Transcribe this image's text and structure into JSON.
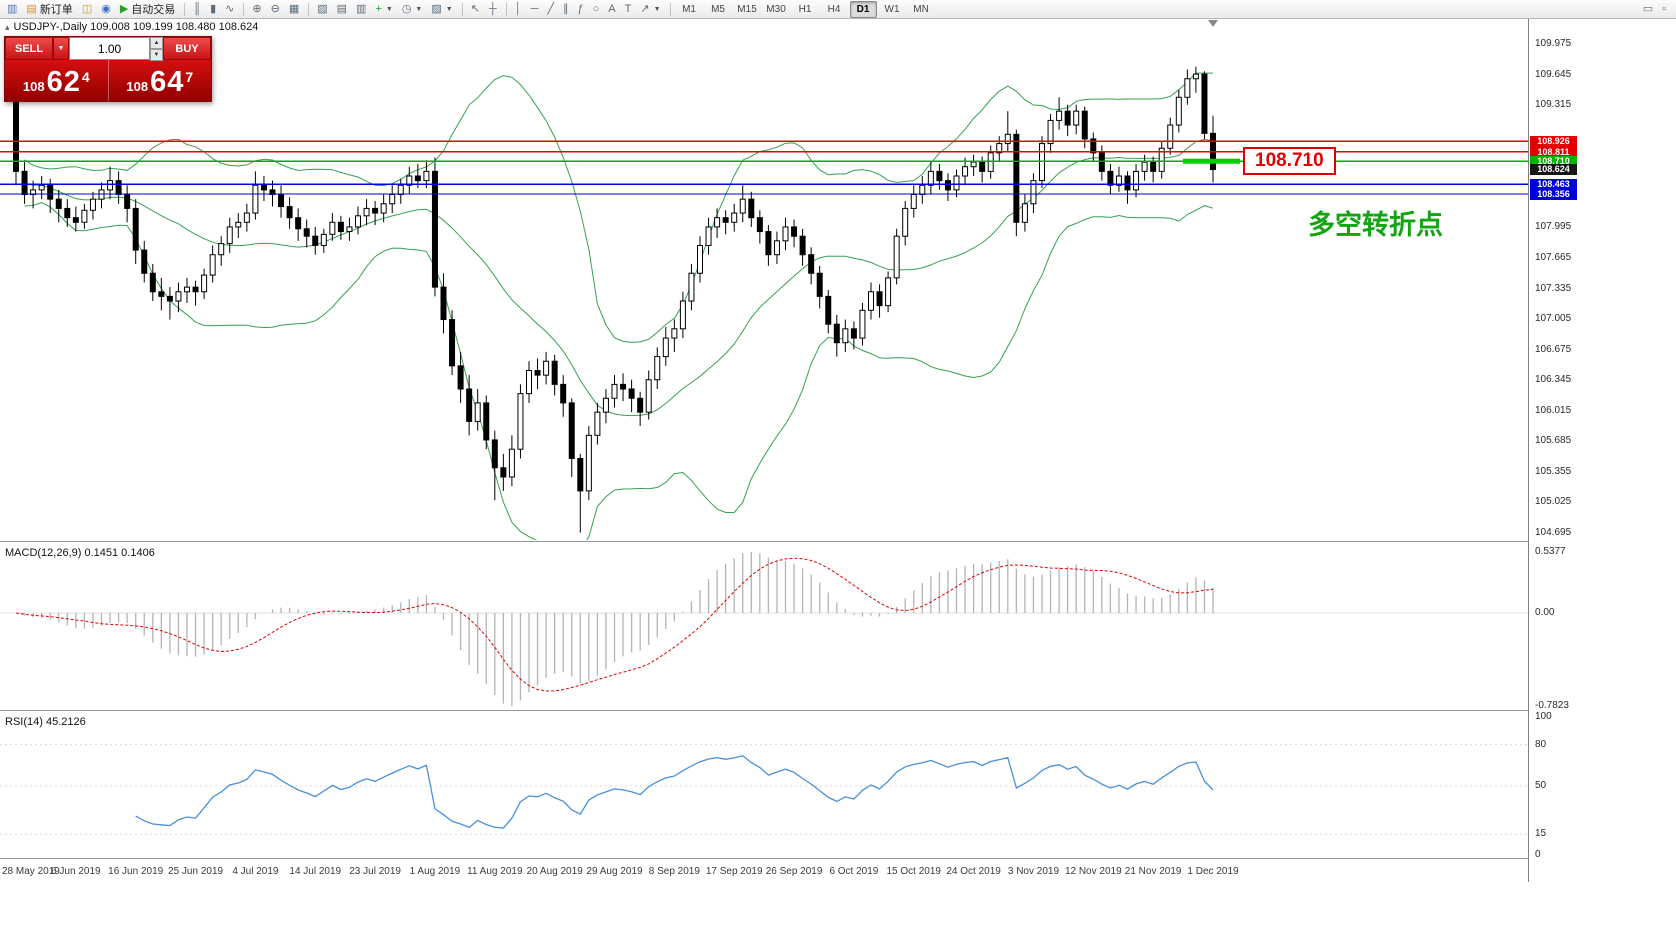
{
  "toolbar": {
    "items": [
      {
        "type": "btn",
        "name": "new-chart-button",
        "glyph": "▥",
        "color": "#4a7ab5"
      },
      {
        "type": "btn",
        "name": "new-order-button",
        "glyph": "▤",
        "color": "#d98f2a",
        "label": "新订单"
      },
      {
        "type": "btn",
        "name": "profiles-button",
        "glyph": "◫",
        "color": "#c9a227"
      },
      {
        "type": "btn",
        "name": "market-watch-button",
        "glyph": "◉",
        "color": "#3a6fbf"
      },
      {
        "type": "btn",
        "name": "autotrading-button",
        "glyph": "▶",
        "color": "#23a123",
        "label": "自动交易"
      },
      {
        "type": "sep"
      },
      {
        "type": "btn",
        "name": "bar-chart-button",
        "glyph": "║"
      },
      {
        "type": "btn",
        "name": "candlestick-chart-button",
        "glyph": "▮"
      },
      {
        "type": "btn",
        "name": "line-chart-button",
        "glyph": "∿"
      },
      {
        "type": "sep"
      },
      {
        "type": "btn",
        "name": "zoom-in-button",
        "glyph": "⊕"
      },
      {
        "type": "btn",
        "name": "zoom-out-button",
        "glyph": "⊖"
      },
      {
        "type": "btn",
        "name": "tile-windows-button",
        "glyph": "▦"
      },
      {
        "type": "sep"
      },
      {
        "type": "btn",
        "name": "cascade-windows-button",
        "glyph": "▧"
      },
      {
        "type": "btn",
        "name": "tile-horizontal-button",
        "glyph": "▤"
      },
      {
        "type": "btn",
        "name": "tile-vertical-button",
        "glyph": "▥"
      },
      {
        "type": "btn",
        "name": "indicators-button",
        "glyph": "+",
        "color": "#1f9e1f",
        "dropdown": true
      },
      {
        "type": "btn",
        "name": "periods-button",
        "glyph": "◷",
        "dropdown": true
      },
      {
        "type": "btn",
        "name": "templates-button",
        "glyph": "▨",
        "dropdown": true
      },
      {
        "type": "sep"
      },
      {
        "type": "btn",
        "name": "cursor-button",
        "glyph": "↖"
      },
      {
        "type": "btn",
        "name": "crosshair-button",
        "glyph": "┼"
      },
      {
        "type": "sep"
      },
      {
        "type": "btn",
        "name": "vertical-line-button",
        "glyph": "│"
      },
      {
        "type": "btn",
        "name": "horizontal-line-button",
        "glyph": "─"
      },
      {
        "type": "btn",
        "name": "trendline-button",
        "glyph": "╱"
      },
      {
        "type": "btn",
        "name": "channel-button",
        "glyph": "∥"
      },
      {
        "type": "btn",
        "name": "fibonacci-button",
        "glyph": "ƒ"
      },
      {
        "type": "btn",
        "name": "shapes-button",
        "glyph": "○"
      },
      {
        "type": "btn",
        "name": "text-button",
        "glyph": "A"
      },
      {
        "type": "btn",
        "name": "text-label-button",
        "glyph": "T"
      },
      {
        "type": "btn",
        "name": "arrows-button",
        "glyph": "↗",
        "dropdown": true
      },
      {
        "type": "sep"
      }
    ],
    "timeframes": [
      {
        "label": "M1"
      },
      {
        "label": "M5"
      },
      {
        "label": "M15"
      },
      {
        "label": "M30"
      },
      {
        "label": "H1"
      },
      {
        "label": "H4"
      },
      {
        "label": "D1",
        "active": true
      },
      {
        "label": "W1"
      },
      {
        "label": "MN"
      }
    ],
    "right_items": [
      {
        "name": "chart-window-button",
        "glyph": "▭"
      },
      {
        "name": "docking-button",
        "glyph": "▫"
      }
    ]
  },
  "trade_panel": {
    "sell_label": "SELL",
    "buy_label": "BUY",
    "volume": "1.00",
    "sell_price_major": "108",
    "sell_price_big": "62",
    "sell_price_sup": "4",
    "buy_price_major": "108",
    "buy_price_big": "64",
    "buy_price_sup": "7"
  },
  "chart_data": {
    "type": "candlestick",
    "symbol": "USDJPY",
    "timeframe": "Daily",
    "title": "USDJPY-,Daily  109.008 109.199 108.480 108.624",
    "ohlc_current": {
      "open": 109.008,
      "high": 109.199,
      "low": 108.48,
      "close": 108.624
    },
    "x_labels": [
      "28 May 2019",
      "6 Jun 2019",
      "16 Jun 2019",
      "25 Jun 2019",
      "4 Jul 2019",
      "14 Jul 2019",
      "23 Jul 2019",
      "1 Aug 2019",
      "11 Aug 2019",
      "20 Aug 2019",
      "29 Aug 2019",
      "8 Sep 2019",
      "17 Sep 2019",
      "26 Sep 2019",
      "6 Oct 2019",
      "15 Oct 2019",
      "24 Oct 2019",
      "3 Nov 2019",
      "12 Nov 2019",
      "21 Nov 2019",
      "1 Dec 2019"
    ],
    "x_label_indices": [
      0,
      7,
      14,
      21,
      28,
      35,
      42,
      49,
      56,
      63,
      70,
      77,
      84,
      91,
      98,
      105,
      112,
      119,
      126,
      133,
      140
    ],
    "candles": [
      [
        109.35,
        109.45,
        108.45,
        108.6
      ],
      [
        108.6,
        108.7,
        108.25,
        108.35
      ],
      [
        108.35,
        108.5,
        108.2,
        108.4
      ],
      [
        108.4,
        108.55,
        108.3,
        108.45
      ],
      [
        108.45,
        108.52,
        108.15,
        108.3
      ],
      [
        108.3,
        108.4,
        108.05,
        108.2
      ],
      [
        108.2,
        108.3,
        108.0,
        108.1
      ],
      [
        108.1,
        108.22,
        107.95,
        108.05
      ],
      [
        108.05,
        108.25,
        107.98,
        108.18
      ],
      [
        108.18,
        108.38,
        108.08,
        108.3
      ],
      [
        108.3,
        108.48,
        108.2,
        108.4
      ],
      [
        108.4,
        108.65,
        108.3,
        108.5
      ],
      [
        108.5,
        108.6,
        108.25,
        108.35
      ],
      [
        108.35,
        108.45,
        108.05,
        108.2
      ],
      [
        108.2,
        108.3,
        107.6,
        107.75
      ],
      [
        107.75,
        107.85,
        107.4,
        107.5
      ],
      [
        107.5,
        107.6,
        107.2,
        107.3
      ],
      [
        107.3,
        107.45,
        107.1,
        107.25
      ],
      [
        107.25,
        107.35,
        107.0,
        107.2
      ],
      [
        107.2,
        107.4,
        107.08,
        107.3
      ],
      [
        107.3,
        107.45,
        107.18,
        107.35
      ],
      [
        107.35,
        107.42,
        107.15,
        107.3
      ],
      [
        107.3,
        107.55,
        107.22,
        107.48
      ],
      [
        107.48,
        107.8,
        107.4,
        107.7
      ],
      [
        107.7,
        107.9,
        107.58,
        107.82
      ],
      [
        107.82,
        108.1,
        107.72,
        108.0
      ],
      [
        108.0,
        108.15,
        107.88,
        108.05
      ],
      [
        108.05,
        108.25,
        107.95,
        108.15
      ],
      [
        108.15,
        108.6,
        108.08,
        108.45
      ],
      [
        108.45,
        108.55,
        108.28,
        108.4
      ],
      [
        108.4,
        108.5,
        108.22,
        108.35
      ],
      [
        108.35,
        108.45,
        108.1,
        108.22
      ],
      [
        108.22,
        108.32,
        107.98,
        108.1
      ],
      [
        108.1,
        108.2,
        107.85,
        107.98
      ],
      [
        107.98,
        108.08,
        107.78,
        107.9
      ],
      [
        107.9,
        108.0,
        107.7,
        107.8
      ],
      [
        107.8,
        107.98,
        107.72,
        107.92
      ],
      [
        107.92,
        108.15,
        107.85,
        108.05
      ],
      [
        108.05,
        108.12,
        107.86,
        107.95
      ],
      [
        107.95,
        108.1,
        107.85,
        108.0
      ],
      [
        108.0,
        108.22,
        107.92,
        108.12
      ],
      [
        108.12,
        108.3,
        108.02,
        108.2
      ],
      [
        108.2,
        108.28,
        108.02,
        108.15
      ],
      [
        108.15,
        108.35,
        108.05,
        108.25
      ],
      [
        108.25,
        108.45,
        108.15,
        108.35
      ],
      [
        108.35,
        108.52,
        108.25,
        108.45
      ],
      [
        108.45,
        108.65,
        108.35,
        108.55
      ],
      [
        108.55,
        108.68,
        108.42,
        108.5
      ],
      [
        108.5,
        108.72,
        108.42,
        108.6
      ],
      [
        108.6,
        108.75,
        107.25,
        107.35
      ],
      [
        107.35,
        107.5,
        106.85,
        107.0
      ],
      [
        107.0,
        107.1,
        106.4,
        106.5
      ],
      [
        106.5,
        106.65,
        106.1,
        106.25
      ],
      [
        106.25,
        106.4,
        105.75,
        105.9
      ],
      [
        105.9,
        106.25,
        105.8,
        106.1
      ],
      [
        106.1,
        106.18,
        105.6,
        105.7
      ],
      [
        105.7,
        105.8,
        105.05,
        105.4
      ],
      [
        105.4,
        105.55,
        105.15,
        105.3
      ],
      [
        105.3,
        105.75,
        105.2,
        105.6
      ],
      [
        105.6,
        106.3,
        105.5,
        106.2
      ],
      [
        106.2,
        106.55,
        106.1,
        106.45
      ],
      [
        106.45,
        106.58,
        106.25,
        106.4
      ],
      [
        106.4,
        106.65,
        106.3,
        106.55
      ],
      [
        106.55,
        106.62,
        106.18,
        106.3
      ],
      [
        106.3,
        106.4,
        105.95,
        106.1
      ],
      [
        106.1,
        106.15,
        105.3,
        105.5
      ],
      [
        105.5,
        105.55,
        104.7,
        105.15
      ],
      [
        105.15,
        105.85,
        105.05,
        105.75
      ],
      [
        105.75,
        106.1,
        105.65,
        106.0
      ],
      [
        106.0,
        106.25,
        105.88,
        106.15
      ],
      [
        106.15,
        106.4,
        106.05,
        106.3
      ],
      [
        106.3,
        106.42,
        106.12,
        106.25
      ],
      [
        106.25,
        106.35,
        106.0,
        106.15
      ],
      [
        106.15,
        106.22,
        105.85,
        106.0
      ],
      [
        106.0,
        106.45,
        105.92,
        106.35
      ],
      [
        106.35,
        106.7,
        106.25,
        106.6
      ],
      [
        106.6,
        106.92,
        106.5,
        106.8
      ],
      [
        106.8,
        107.0,
        106.65,
        106.9
      ],
      [
        106.9,
        107.3,
        106.8,
        107.2
      ],
      [
        107.2,
        107.6,
        107.1,
        107.5
      ],
      [
        107.5,
        107.9,
        107.4,
        107.8
      ],
      [
        107.8,
        108.1,
        107.7,
        108.0
      ],
      [
        108.0,
        108.2,
        107.88,
        108.1
      ],
      [
        108.1,
        108.18,
        107.92,
        108.05
      ],
      [
        108.05,
        108.25,
        107.95,
        108.15
      ],
      [
        108.15,
        108.45,
        108.05,
        108.3
      ],
      [
        108.3,
        108.38,
        108.0,
        108.1
      ],
      [
        108.1,
        108.18,
        107.82,
        107.95
      ],
      [
        107.95,
        108.02,
        107.58,
        107.7
      ],
      [
        107.7,
        107.95,
        107.6,
        107.85
      ],
      [
        107.85,
        108.1,
        107.75,
        108.0
      ],
      [
        108.0,
        108.08,
        107.78,
        107.9
      ],
      [
        107.9,
        107.98,
        107.58,
        107.7
      ],
      [
        107.7,
        107.78,
        107.38,
        107.5
      ],
      [
        107.5,
        107.58,
        107.12,
        107.25
      ],
      [
        107.25,
        107.32,
        106.85,
        106.95
      ],
      [
        106.95,
        107.05,
        106.6,
        106.75
      ],
      [
        106.75,
        107.0,
        106.65,
        106.9
      ],
      [
        106.9,
        106.98,
        106.68,
        106.8
      ],
      [
        106.8,
        107.18,
        106.72,
        107.1
      ],
      [
        107.1,
        107.4,
        107.0,
        107.3
      ],
      [
        107.3,
        107.38,
        107.02,
        107.15
      ],
      [
        107.15,
        107.52,
        107.08,
        107.45
      ],
      [
        107.45,
        107.98,
        107.38,
        107.9
      ],
      [
        107.9,
        108.28,
        107.8,
        108.2
      ],
      [
        108.2,
        108.45,
        108.1,
        108.35
      ],
      [
        108.35,
        108.55,
        108.25,
        108.45
      ],
      [
        108.45,
        108.7,
        108.35,
        108.6
      ],
      [
        108.6,
        108.68,
        108.4,
        108.5
      ],
      [
        108.5,
        108.58,
        108.28,
        108.4
      ],
      [
        108.4,
        108.62,
        108.32,
        108.55
      ],
      [
        108.55,
        108.75,
        108.45,
        108.65
      ],
      [
        108.65,
        108.78,
        108.55,
        108.7
      ],
      [
        108.7,
        108.76,
        108.48,
        108.6
      ],
      [
        108.6,
        108.88,
        108.52,
        108.8
      ],
      [
        108.8,
        108.98,
        108.7,
        108.9
      ],
      [
        108.9,
        109.25,
        108.82,
        109.0
      ],
      [
        109.0,
        109.05,
        107.9,
        108.05
      ],
      [
        108.05,
        108.35,
        107.95,
        108.25
      ],
      [
        108.25,
        108.58,
        108.15,
        108.5
      ],
      [
        108.5,
        108.98,
        108.42,
        108.9
      ],
      [
        108.9,
        109.22,
        108.8,
        109.15
      ],
      [
        109.15,
        109.4,
        109.05,
        109.25
      ],
      [
        109.25,
        109.32,
        108.98,
        109.1
      ],
      [
        109.1,
        109.32,
        109.0,
        109.25
      ],
      [
        109.25,
        109.3,
        108.85,
        108.95
      ],
      [
        108.95,
        109.02,
        108.7,
        108.8
      ],
      [
        108.8,
        108.88,
        108.5,
        108.6
      ],
      [
        108.6,
        108.68,
        108.35,
        108.45
      ],
      [
        108.45,
        108.65,
        108.38,
        108.55
      ],
      [
        108.55,
        108.6,
        108.25,
        108.4
      ],
      [
        108.4,
        108.68,
        108.32,
        108.6
      ],
      [
        108.6,
        108.78,
        108.5,
        108.7
      ],
      [
        108.7,
        108.76,
        108.48,
        108.6
      ],
      [
        108.6,
        108.92,
        108.52,
        108.85
      ],
      [
        108.85,
        109.18,
        108.78,
        109.1
      ],
      [
        109.1,
        109.48,
        109.02,
        109.4
      ],
      [
        109.4,
        109.7,
        109.32,
        109.6
      ],
      [
        109.6,
        109.73,
        109.45,
        109.65
      ],
      [
        109.65,
        109.68,
        108.95,
        109.01
      ],
      [
        109.01,
        109.2,
        108.48,
        108.62
      ]
    ],
    "overlays": {
      "bollinger": {
        "period": 20,
        "deviation": 2,
        "color": "#38a052"
      }
    },
    "hlines": [
      {
        "price": 108.926,
        "color": "#e40000"
      },
      {
        "price": 108.811,
        "color": "#e40000"
      },
      {
        "price": 108.71,
        "color": "#00a800"
      },
      {
        "price": 108.463,
        "color": "#0000dc"
      },
      {
        "price": 108.356,
        "color": "#0000dc"
      }
    ],
    "highlight": {
      "price": 108.71,
      "color": "#00d000"
    },
    "y_axis": {
      "ticks": [
        "109.975",
        "109.645",
        "109.315",
        "107.995",
        "107.665",
        "107.335",
        "107.005",
        "106.675",
        "106.345",
        "106.015",
        "105.685",
        "105.355",
        "105.025",
        "104.695"
      ],
      "tags": [
        {
          "value": "108.926",
          "color": "#e40000"
        },
        {
          "value": "108.811",
          "color": "#e40000"
        },
        {
          "value": "108.710",
          "color": "#00b400"
        },
        {
          "value": "108.624",
          "color": "#161616"
        },
        {
          "value": "108.463",
          "color": "#0000dc"
        },
        {
          "value": "108.356",
          "color": "#0000dc"
        }
      ]
    },
    "indicators": [
      {
        "type": "macd",
        "label": "MACD(12,26,9) 0.1451 0.1406",
        "params": [
          12,
          26,
          9
        ],
        "scale": [
          "0.5377",
          "0.00",
          "-0.7823"
        ]
      },
      {
        "type": "rsi",
        "label": "RSI(14) 45.2126",
        "params": [
          14
        ],
        "scale": [
          "100",
          "80",
          "50",
          "15",
          "0"
        ],
        "levels": [
          80,
          50,
          15
        ]
      }
    ],
    "annotations": {
      "price_label": {
        "text": "108.710",
        "color": "#e40000"
      },
      "note": {
        "text": "多空转折点",
        "color": "#11a511"
      }
    }
  }
}
